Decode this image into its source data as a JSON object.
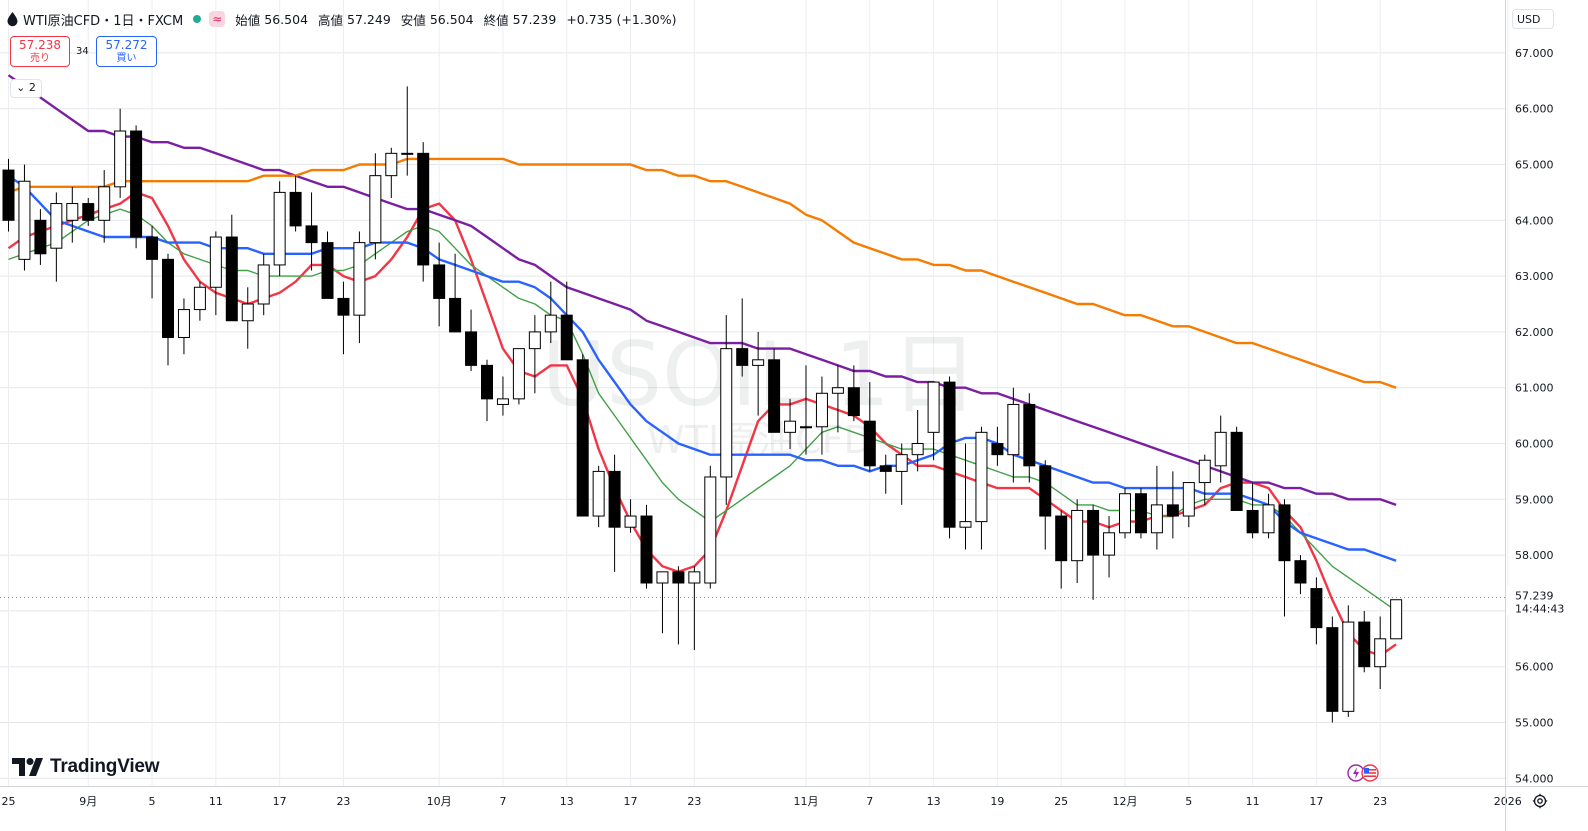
{
  "header": {
    "symbol": "WTI原油CFD・1日・FXCM",
    "approx_badge": "≈",
    "open_label": "始値",
    "open": "56.504",
    "high_label": "高値",
    "high": "57.249",
    "low_label": "安値",
    "low": "56.504",
    "close_label": "終値",
    "close": "57.239",
    "change": "+0.735 (+1.30%)"
  },
  "trade": {
    "sell_price": "57.238",
    "sell_label": "売り",
    "spread": "34",
    "buy_price": "57.272",
    "buy_label": "買い"
  },
  "collapse_label": "2",
  "currency": "USD",
  "watermark": {
    "symbol": "USOIL 1日",
    "subtitle": "WTI原油CFD"
  },
  "logo": "TradingView",
  "last_price": {
    "value": "57.239",
    "countdown": "14:44:43"
  },
  "colors": {
    "up_fill": "#ffffff",
    "down_fill": "#000000",
    "ma_red": "#f23645",
    "ma_green": "#43a047",
    "ma_blue": "#2962ff",
    "ma_purple": "#7b1fa2",
    "ma_orange": "#f57c00"
  },
  "icons": {
    "symbol": "drop-icon",
    "settings": "gear-icon",
    "events": "flag-icon",
    "logo": "tradingview-logo-icon"
  },
  "chart_data": {
    "type": "candlestick",
    "ylim": [
      53.8,
      67.8
    ],
    "y_ticks": [
      54,
      55,
      56,
      57,
      58,
      59,
      60,
      61,
      62,
      63,
      64,
      65,
      66,
      67
    ],
    "y_tick_labels": [
      "54.000",
      "55.000",
      "56.000",
      "57.000",
      "58.000",
      "59.000",
      "60.000",
      "61.000",
      "62.000",
      "63.000",
      "64.000",
      "65.000",
      "66.000",
      "67.000"
    ],
    "x_tick_labels": [
      "25",
      "9月",
      "5",
      "11",
      "17",
      "23",
      "10月",
      "7",
      "13",
      "17",
      "23",
      "11月",
      "7",
      "13",
      "19",
      "25",
      "12月",
      "5",
      "11",
      "17",
      "23",
      "2026"
    ],
    "x_tick_index": [
      0,
      5,
      9,
      13,
      17,
      21,
      27,
      31,
      35,
      39,
      43,
      50,
      54,
      58,
      62,
      66,
      70,
      74,
      78,
      82,
      86,
      94
    ],
    "grid": true,
    "candles": [
      [
        64.9,
        65.1,
        63.8,
        64.0
      ],
      [
        63.3,
        65.0,
        63.1,
        64.7
      ],
      [
        64.0,
        64.2,
        63.2,
        63.4
      ],
      [
        63.5,
        64.5,
        62.9,
        64.3
      ],
      [
        64.0,
        64.6,
        63.6,
        64.3
      ],
      [
        64.3,
        64.4,
        63.9,
        64.0
      ],
      [
        64.0,
        64.9,
        63.6,
        64.6
      ],
      [
        64.6,
        66.0,
        64.4,
        65.6
      ],
      [
        65.6,
        65.7,
        63.5,
        63.7
      ],
      [
        63.7,
        63.9,
        62.6,
        63.3
      ],
      [
        63.3,
        63.4,
        61.4,
        61.9
      ],
      [
        61.9,
        62.6,
        61.6,
        62.4
      ],
      [
        62.4,
        62.9,
        62.2,
        62.8
      ],
      [
        62.8,
        63.8,
        62.3,
        63.7
      ],
      [
        63.7,
        64.1,
        62.2,
        62.2
      ],
      [
        62.2,
        62.8,
        61.7,
        62.5
      ],
      [
        62.5,
        63.4,
        62.3,
        63.2
      ],
      [
        63.2,
        64.7,
        63.0,
        64.5
      ],
      [
        64.5,
        64.8,
        63.8,
        63.9
      ],
      [
        63.9,
        64.5,
        63.1,
        63.6
      ],
      [
        63.6,
        63.8,
        62.6,
        62.6
      ],
      [
        62.6,
        62.9,
        61.6,
        62.3
      ],
      [
        62.3,
        63.8,
        61.8,
        63.6
      ],
      [
        63.6,
        65.2,
        63.3,
        64.8
      ],
      [
        64.8,
        65.3,
        64.4,
        65.2
      ],
      [
        65.2,
        66.4,
        64.8,
        65.2
      ],
      [
        65.2,
        65.4,
        62.9,
        63.2
      ],
      [
        63.2,
        63.6,
        62.1,
        62.6
      ],
      [
        62.6,
        63.4,
        62.0,
        62.0
      ],
      [
        62.0,
        62.4,
        61.3,
        61.4
      ],
      [
        61.4,
        61.5,
        60.4,
        60.8
      ],
      [
        60.7,
        61.2,
        60.5,
        60.8
      ],
      [
        60.8,
        61.7,
        60.7,
        61.7
      ],
      [
        61.7,
        62.3,
        60.9,
        62.0
      ],
      [
        62.0,
        62.9,
        61.8,
        62.3
      ],
      [
        62.3,
        62.9,
        61.5,
        61.5
      ],
      [
        61.5,
        61.6,
        58.7,
        58.7
      ],
      [
        58.7,
        59.6,
        58.5,
        59.5
      ],
      [
        59.5,
        59.8,
        57.7,
        58.5
      ],
      [
        58.5,
        59.0,
        58.4,
        58.7
      ],
      [
        58.7,
        58.9,
        57.4,
        57.5
      ],
      [
        57.5,
        57.7,
        56.6,
        57.7
      ],
      [
        57.7,
        57.8,
        56.4,
        57.5
      ],
      [
        57.5,
        57.8,
        56.3,
        57.7
      ],
      [
        57.5,
        59.6,
        57.4,
        59.4
      ],
      [
        59.4,
        62.3,
        58.9,
        61.7
      ],
      [
        61.7,
        62.6,
        61.2,
        61.4
      ],
      [
        61.4,
        62.0,
        60.5,
        61.5
      ],
      [
        61.5,
        61.7,
        60.3,
        60.2
      ],
      [
        60.2,
        60.8,
        59.9,
        60.4
      ],
      [
        60.3,
        61.4,
        59.8,
        60.3
      ],
      [
        60.3,
        61.2,
        59.8,
        60.9
      ],
      [
        60.9,
        61.4,
        60.2,
        61.0
      ],
      [
        61.0,
        61.4,
        60.4,
        60.5
      ],
      [
        60.4,
        61.1,
        59.5,
        59.6
      ],
      [
        59.6,
        59.8,
        59.1,
        59.5
      ],
      [
        59.5,
        60.0,
        58.9,
        59.8
      ],
      [
        59.8,
        60.6,
        59.5,
        60.0
      ],
      [
        60.2,
        61.1,
        59.7,
        61.1
      ],
      [
        61.1,
        61.2,
        58.3,
        58.5
      ],
      [
        58.5,
        60.0,
        58.1,
        58.6
      ],
      [
        58.6,
        60.3,
        58.1,
        60.2
      ],
      [
        60.0,
        60.3,
        59.6,
        59.8
      ],
      [
        59.8,
        61.0,
        59.3,
        60.7
      ],
      [
        60.7,
        60.9,
        59.3,
        59.6
      ],
      [
        59.6,
        59.7,
        58.1,
        58.7
      ],
      [
        58.7,
        58.8,
        57.4,
        57.9
      ],
      [
        57.9,
        59.0,
        57.5,
        58.8
      ],
      [
        58.8,
        58.9,
        57.2,
        58.0
      ],
      [
        58.0,
        58.7,
        57.6,
        58.4
      ],
      [
        58.4,
        59.2,
        58.3,
        59.1
      ],
      [
        59.1,
        59.2,
        58.3,
        58.4
      ],
      [
        58.4,
        59.6,
        58.1,
        58.9
      ],
      [
        58.9,
        59.5,
        58.3,
        58.7
      ],
      [
        58.7,
        59.3,
        58.5,
        59.3
      ],
      [
        59.3,
        59.8,
        58.9,
        59.7
      ],
      [
        59.6,
        60.5,
        59.3,
        60.2
      ],
      [
        60.2,
        60.3,
        58.8,
        58.8
      ],
      [
        58.8,
        59.3,
        58.3,
        58.4
      ],
      [
        58.4,
        59.1,
        58.3,
        58.9
      ],
      [
        58.9,
        59.0,
        56.9,
        57.9
      ],
      [
        57.9,
        58.0,
        57.3,
        57.5
      ],
      [
        57.4,
        57.6,
        56.4,
        56.7
      ],
      [
        56.7,
        56.9,
        55.0,
        55.2
      ],
      [
        55.2,
        57.1,
        55.1,
        56.8
      ],
      [
        56.8,
        57.0,
        55.9,
        56.0
      ],
      [
        56.0,
        56.9,
        55.6,
        56.5
      ],
      [
        56.5,
        57.2,
        56.5,
        57.2
      ]
    ],
    "series": [
      {
        "color": "#f23645",
        "values": [
          63.5,
          63.7,
          63.8,
          63.9,
          64.0,
          64.1,
          64.2,
          64.3,
          64.5,
          64.4,
          63.9,
          63.3,
          62.9,
          62.7,
          62.6,
          62.5,
          62.6,
          62.7,
          62.9,
          63.2,
          63.2,
          63.0,
          62.9,
          63.0,
          63.3,
          63.7,
          64.2,
          64.3,
          64.0,
          63.3,
          62.5,
          61.7,
          61.3,
          61.2,
          61.4,
          61.4,
          60.8,
          59.9,
          59.2,
          58.6,
          58.1,
          57.8,
          57.7,
          57.8,
          58.1,
          58.8,
          59.6,
          60.4,
          60.7,
          60.7,
          60.8,
          60.7,
          60.6,
          60.5,
          60.3,
          60.0,
          59.8,
          59.6,
          59.6,
          59.5,
          59.4,
          59.3,
          59.2,
          59.2,
          59.2,
          59.0,
          58.8,
          58.6,
          58.6,
          58.5,
          58.6,
          58.6,
          58.7,
          58.7,
          58.8,
          58.9,
          59.2,
          59.3,
          59.3,
          59.2,
          58.8,
          58.5,
          57.9,
          57.2,
          56.6,
          56.3,
          56.2,
          56.4
        ]
      },
      {
        "color": "#43a047",
        "values": [
          63.3,
          63.4,
          63.5,
          63.6,
          63.8,
          64.0,
          64.1,
          64.2,
          64.1,
          63.9,
          63.6,
          63.4,
          63.3,
          63.2,
          63.1,
          63.1,
          63.0,
          63.0,
          63.0,
          63.0,
          63.1,
          63.1,
          63.2,
          63.4,
          63.6,
          63.8,
          63.9,
          63.8,
          63.5,
          63.2,
          63.0,
          62.8,
          62.6,
          62.5,
          62.3,
          62.2,
          61.6,
          60.9,
          60.5,
          60.1,
          59.7,
          59.3,
          59.0,
          58.8,
          58.6,
          58.8,
          59.0,
          59.2,
          59.4,
          59.6,
          59.9,
          60.2,
          60.3,
          60.2,
          60.1,
          60.0,
          59.9,
          59.9,
          59.9,
          59.8,
          59.7,
          59.6,
          59.5,
          59.4,
          59.4,
          59.3,
          59.1,
          58.9,
          58.9,
          58.8,
          58.8,
          58.8,
          58.7,
          58.7,
          58.9,
          59.0,
          59.0,
          59.0,
          58.9,
          58.9,
          58.7,
          58.4,
          58.1,
          57.8,
          57.6,
          57.4,
          57.2,
          57.0
        ]
      },
      {
        "color": "#2962ff",
        "values": [
          64.8,
          64.6,
          64.3,
          64.0,
          63.9,
          63.8,
          63.7,
          63.7,
          63.7,
          63.7,
          63.6,
          63.6,
          63.6,
          63.5,
          63.5,
          63.5,
          63.4,
          63.4,
          63.4,
          63.4,
          63.5,
          63.5,
          63.5,
          63.6,
          63.6,
          63.6,
          63.5,
          63.3,
          63.2,
          63.1,
          63.0,
          62.9,
          62.9,
          62.8,
          62.6,
          62.3,
          62.0,
          61.5,
          61.1,
          60.7,
          60.4,
          60.2,
          60.0,
          59.9,
          59.8,
          59.8,
          59.8,
          59.8,
          59.8,
          59.8,
          59.7,
          59.7,
          59.6,
          59.6,
          59.5,
          59.6,
          59.6,
          59.7,
          59.8,
          60.0,
          60.1,
          60.1,
          60.0,
          59.8,
          59.7,
          59.6,
          59.5,
          59.4,
          59.3,
          59.3,
          59.2,
          59.2,
          59.2,
          59.2,
          59.2,
          59.1,
          59.1,
          59.1,
          59.0,
          58.9,
          58.6,
          58.4,
          58.3,
          58.2,
          58.1,
          58.1,
          58.0,
          57.9
        ]
      },
      {
        "color": "#7b1fa2",
        "values": [
          66.6,
          66.4,
          66.2,
          66.0,
          65.8,
          65.6,
          65.6,
          65.5,
          65.5,
          65.4,
          65.4,
          65.3,
          65.3,
          65.2,
          65.1,
          65.0,
          64.9,
          64.9,
          64.8,
          64.7,
          64.6,
          64.6,
          64.5,
          64.4,
          64.3,
          64.2,
          64.2,
          64.1,
          64.0,
          63.9,
          63.7,
          63.5,
          63.3,
          63.2,
          63.0,
          62.8,
          62.7,
          62.6,
          62.5,
          62.4,
          62.2,
          62.1,
          62.0,
          61.9,
          61.8,
          61.8,
          61.8,
          61.7,
          61.7,
          61.7,
          61.6,
          61.5,
          61.4,
          61.3,
          61.3,
          61.2,
          61.2,
          61.1,
          61.1,
          61.0,
          61.0,
          60.9,
          60.9,
          60.8,
          60.7,
          60.6,
          60.5,
          60.4,
          60.3,
          60.2,
          60.1,
          60.0,
          59.9,
          59.8,
          59.7,
          59.6,
          59.5,
          59.4,
          59.3,
          59.3,
          59.2,
          59.2,
          59.1,
          59.1,
          59.0,
          59.0,
          59.0,
          58.9
        ]
      },
      {
        "color": "#f57c00",
        "values": [
          64.5,
          64.6,
          64.6,
          64.6,
          64.6,
          64.6,
          64.6,
          64.7,
          64.7,
          64.7,
          64.7,
          64.7,
          64.7,
          64.7,
          64.7,
          64.7,
          64.8,
          64.8,
          64.8,
          64.9,
          64.9,
          64.9,
          65.0,
          65.0,
          65.0,
          65.1,
          65.1,
          65.1,
          65.1,
          65.1,
          65.1,
          65.1,
          65.0,
          65.0,
          65.0,
          65.0,
          65.0,
          65.0,
          65.0,
          65.0,
          64.9,
          64.9,
          64.8,
          64.8,
          64.7,
          64.7,
          64.6,
          64.5,
          64.4,
          64.3,
          64.1,
          64.0,
          63.8,
          63.6,
          63.5,
          63.4,
          63.3,
          63.3,
          63.2,
          63.2,
          63.1,
          63.1,
          63.0,
          62.9,
          62.8,
          62.7,
          62.6,
          62.5,
          62.5,
          62.4,
          62.3,
          62.3,
          62.2,
          62.1,
          62.1,
          62.0,
          61.9,
          61.8,
          61.8,
          61.7,
          61.6,
          61.5,
          61.4,
          61.3,
          61.2,
          61.1,
          61.1,
          61.0
        ]
      }
    ]
  }
}
